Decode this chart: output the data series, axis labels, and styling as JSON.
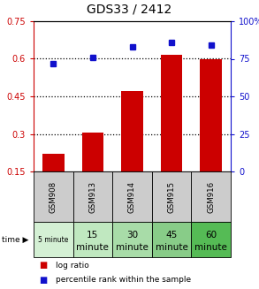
{
  "title": "GDS33 / 2412",
  "samples": [
    "GSM908",
    "GSM913",
    "GSM914",
    "GSM915",
    "GSM916"
  ],
  "time_labels_line1": [
    "5 minute",
    "15",
    "30",
    "45",
    "60"
  ],
  "time_labels_line2": [
    "",
    "minute",
    "minute",
    "minute",
    "minute"
  ],
  "log_ratio": [
    0.22,
    0.305,
    0.47,
    0.615,
    0.6
  ],
  "percentile_rank": [
    72,
    76,
    83,
    86,
    84
  ],
  "left_ylim": [
    0.15,
    0.75
  ],
  "right_ylim": [
    0,
    100
  ],
  "left_yticks": [
    0.15,
    0.3,
    0.45,
    0.6,
    0.75
  ],
  "right_yticks": [
    0,
    25,
    50,
    75,
    100
  ],
  "right_yticklabels": [
    "0",
    "25",
    "50",
    "75",
    "100%"
  ],
  "dotted_lines": [
    0.3,
    0.45,
    0.6
  ],
  "bar_color": "#cc0000",
  "marker_color": "#1111cc",
  "left_axis_color": "#cc0000",
  "right_axis_color": "#1111cc",
  "gsm_bg_color": "#cccccc",
  "time_bg_colors": [
    "#d4f0d4",
    "#c0e8c0",
    "#a8dca8",
    "#88cc88",
    "#55bb55"
  ],
  "legend_bar_label": "log ratio",
  "legend_marker_label": "percentile rank within the sample",
  "bar_width": 0.55
}
